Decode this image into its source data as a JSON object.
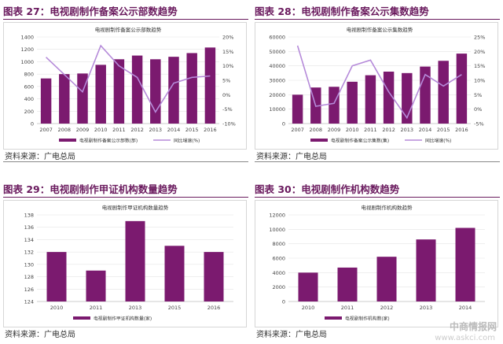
{
  "figures": [
    {
      "title": "图表 27：电视剧制作备案公示部数趋势",
      "source": "资料来源：广电总局"
    },
    {
      "title": "图表 28：电视剧制作备案公示集数趋势",
      "source": "资料来源：广电总局"
    },
    {
      "title": "图表 29：电视剧制作甲证机构数量趋势",
      "source": "资料来源：广电总局"
    },
    {
      "title": "图表 30：电视剧制作机构数趋势",
      "source": "资料来源：广电总局"
    }
  ],
  "watermark": {
    "line1": "中商情报网",
    "line2": "www.askci.com"
  },
  "colors": {
    "bar": "#7b1a6f",
    "line": "#b58ad9",
    "title": "#6a1a5e"
  },
  "chart_data": [
    {
      "type": "bar",
      "title": "电视剧制作备案公示部数趋势",
      "categories": [
        "2007",
        "2008",
        "2009",
        "2010",
        "2011",
        "2012",
        "2013",
        "2014",
        "2015",
        "2016"
      ],
      "series": [
        {
          "name": "电视剧制作备案公示部数(部)",
          "values": [
            730,
            800,
            810,
            950,
            1040,
            1100,
            1040,
            1080,
            1140,
            1230
          ]
        },
        {
          "name": "同比增速(%)",
          "axis": "right",
          "type": "line",
          "values": [
            13,
            7,
            1,
            17,
            10,
            6,
            -6,
            4,
            6,
            6.5
          ]
        }
      ],
      "yticks_left": [
        "0",
        "200",
        "400",
        "600",
        "800",
        "1000",
        "1200",
        "1400"
      ],
      "yticks_right": [
        "-10%",
        "-5%",
        "0%",
        "5%",
        "10%",
        "15%",
        "20%"
      ],
      "ylim_left": [
        0,
        1400
      ],
      "ylim_right": [
        -10,
        20
      ]
    },
    {
      "type": "bar",
      "title": "电视剧制作备案公示集数趋势",
      "categories": [
        "2007",
        "2008",
        "2009",
        "2010",
        "2011",
        "2012",
        "2013",
        "2014",
        "2015",
        "2016"
      ],
      "series": [
        {
          "name": "电视剧制作备案公示集数(集)",
          "values": [
            20000,
            25000,
            25500,
            29000,
            33500,
            36000,
            35000,
            39500,
            43500,
            48500
          ]
        },
        {
          "name": "同比增速(%)",
          "axis": "right",
          "type": "line",
          "values": [
            22,
            1,
            2,
            15,
            17,
            6,
            -3,
            12,
            8,
            12
          ]
        }
      ],
      "yticks_left": [
        "0",
        "10000",
        "20000",
        "30000",
        "40000",
        "50000",
        "60000"
      ],
      "yticks_right": [
        "-5%",
        "0%",
        "5%",
        "10%",
        "15%",
        "20%",
        "25%"
      ],
      "ylim_left": [
        0,
        60000
      ],
      "ylim_right": [
        -5,
        25
      ]
    },
    {
      "type": "bar",
      "title": "电视剧制作甲证机构数量趋势",
      "categories": [
        "2010",
        "2011",
        "2013",
        "2015",
        "2016"
      ],
      "series": [
        {
          "name": "电视剧制作甲证机构数量(家)",
          "values": [
            132,
            129,
            137,
            133,
            132
          ]
        }
      ],
      "yticks_left": [
        "124",
        "126",
        "128",
        "130",
        "132",
        "134",
        "136",
        "138"
      ],
      "ylim_left": [
        124,
        138
      ]
    },
    {
      "type": "bar",
      "title": "电视剧制作机构数趋势",
      "categories": [
        "2010",
        "2011",
        "2012",
        "2013",
        "2014"
      ],
      "series": [
        {
          "name": "电视剧制作机构数(家)",
          "values": [
            4000,
            4700,
            6200,
            8600,
            10200
          ]
        }
      ],
      "yticks_left": [
        "0",
        "2000",
        "4000",
        "6000",
        "8000",
        "10000",
        "12000"
      ],
      "ylim_left": [
        0,
        12000
      ]
    }
  ]
}
